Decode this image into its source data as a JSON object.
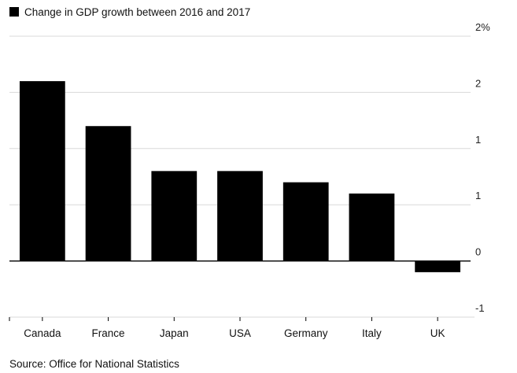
{
  "colors": {
    "bar": "#000000",
    "grid": "#d9d9d9",
    "axis": "#000000",
    "text": "#111111",
    "background": "#ffffff"
  },
  "chart_data": {
    "type": "bar",
    "title": "",
    "legend": [
      "Change in GDP growth between 2016 and 2017"
    ],
    "legend_position": "top-left",
    "categories": [
      "Canada",
      "France",
      "Japan",
      "USA",
      "Germany",
      "Italy",
      "UK"
    ],
    "series": [
      {
        "name": "Change in GDP growth between 2016 and 2017",
        "values": [
          1.6,
          1.2,
          0.8,
          0.8,
          0.7,
          0.6,
          -0.1
        ]
      }
    ],
    "xlabel": "",
    "ylabel": "",
    "ylim": [
      -0.5,
      2.0
    ],
    "yticks": [
      {
        "value": 2.0,
        "label": "2%"
      },
      {
        "value": 1.5,
        "label": "2"
      },
      {
        "value": 1.0,
        "label": "1"
      },
      {
        "value": 0.5,
        "label": "1"
      },
      {
        "value": 0.0,
        "label": "0"
      },
      {
        "value": -0.5,
        "label": "-1"
      }
    ],
    "grid": true,
    "axis_side": "right"
  },
  "source": "Source: Office for National Statistics"
}
